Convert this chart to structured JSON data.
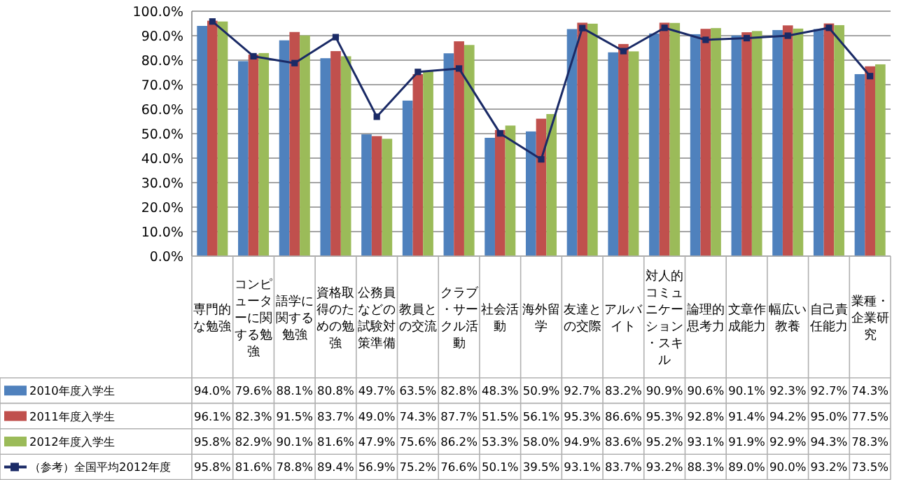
{
  "chart_data": {
    "type": "bar",
    "categories": [
      "専門的な勉強",
      "コンピューターに関する勉強",
      "語学に関する勉強",
      "資格取得のための勉強",
      "公務員などの試験対策準備",
      "教員との交流",
      "クラブ・サークル活動",
      "社会活動",
      "海外留学",
      "友達との交際",
      "アルバイト",
      "対人的コミュニケーション・スキル",
      "論理的思考力",
      "文章作成能力",
      "幅広い教養",
      "自己責任能力",
      "業種・企業研究"
    ],
    "series": [
      {
        "name": "2010年度入学生",
        "color": "#4f81bd",
        "values": [
          94.0,
          79.6,
          88.1,
          80.8,
          49.7,
          63.5,
          82.8,
          48.3,
          50.9,
          92.7,
          83.2,
          90.9,
          90.6,
          90.1,
          92.3,
          92.7,
          74.3
        ],
        "value_labels": [
          "94.0%",
          "79.6%",
          "88.1%",
          "80.8%",
          "49.7%",
          "63.5%",
          "82.8%",
          "48.3%",
          "50.9%",
          "92.7%",
          "83.2%",
          "90.9%",
          "90.6%",
          "90.1%",
          "92.3%",
          "92.7%",
          "74.3%"
        ]
      },
      {
        "name": "2011年度入学生",
        "color": "#c0504d",
        "values": [
          96.1,
          82.3,
          91.5,
          83.7,
          49.0,
          74.3,
          87.7,
          51.5,
          56.1,
          95.3,
          86.6,
          95.3,
          92.8,
          91.4,
          94.2,
          95.0,
          77.5
        ],
        "value_labels": [
          "96.1%",
          "82.3%",
          "91.5%",
          "83.7%",
          "49.0%",
          "74.3%",
          "87.7%",
          "51.5%",
          "56.1%",
          "95.3%",
          "86.6%",
          "95.3%",
          "92.8%",
          "91.4%",
          "94.2%",
          "95.0%",
          "77.5%"
        ]
      },
      {
        "name": "2012年度入学生",
        "color": "#9bbb59",
        "values": [
          95.8,
          82.9,
          90.1,
          81.6,
          47.9,
          75.6,
          86.2,
          53.3,
          58.0,
          94.9,
          83.6,
          95.2,
          93.1,
          91.9,
          92.9,
          94.3,
          78.3
        ],
        "value_labels": [
          "95.8%",
          "82.9%",
          "90.1%",
          "81.6%",
          "47.9%",
          "75.6%",
          "86.2%",
          "53.3%",
          "58.0%",
          "94.9%",
          "83.6%",
          "95.2%",
          "93.1%",
          "91.9%",
          "92.9%",
          "94.3%",
          "78.3%"
        ]
      },
      {
        "name": "（参考）全国平均2012年度",
        "type": "line",
        "color": "#1a2a66",
        "marker": "square",
        "values": [
          95.8,
          81.6,
          78.8,
          89.4,
          56.9,
          75.2,
          76.6,
          50.1,
          39.5,
          93.1,
          83.7,
          93.2,
          88.3,
          89.0,
          90.0,
          93.2,
          73.5
        ],
        "value_labels": [
          "95.8%",
          "81.6%",
          "78.8%",
          "89.4%",
          "56.9%",
          "75.2%",
          "76.6%",
          "50.1%",
          "39.5%",
          "93.1%",
          "83.7%",
          "93.2%",
          "88.3%",
          "89.0%",
          "90.0%",
          "93.2%",
          "73.5%"
        ]
      }
    ],
    "ylim": [
      0,
      100
    ],
    "yticks": [
      {
        "value": 0,
        "label": "0.0%"
      },
      {
        "value": 10,
        "label": "10.0%"
      },
      {
        "value": 20,
        "label": "20.0%"
      },
      {
        "value": 30,
        "label": "30.0%"
      },
      {
        "value": 40,
        "label": "40.0%"
      },
      {
        "value": 50,
        "label": "50.0%"
      },
      {
        "value": 60,
        "label": "60.0%"
      },
      {
        "value": 70,
        "label": "70.0%"
      },
      {
        "value": 80,
        "label": "80.0%"
      },
      {
        "value": 90,
        "label": "90.0%"
      },
      {
        "value": 100,
        "label": "100.0%"
      }
    ],
    "grid": "y",
    "legend": "left"
  }
}
